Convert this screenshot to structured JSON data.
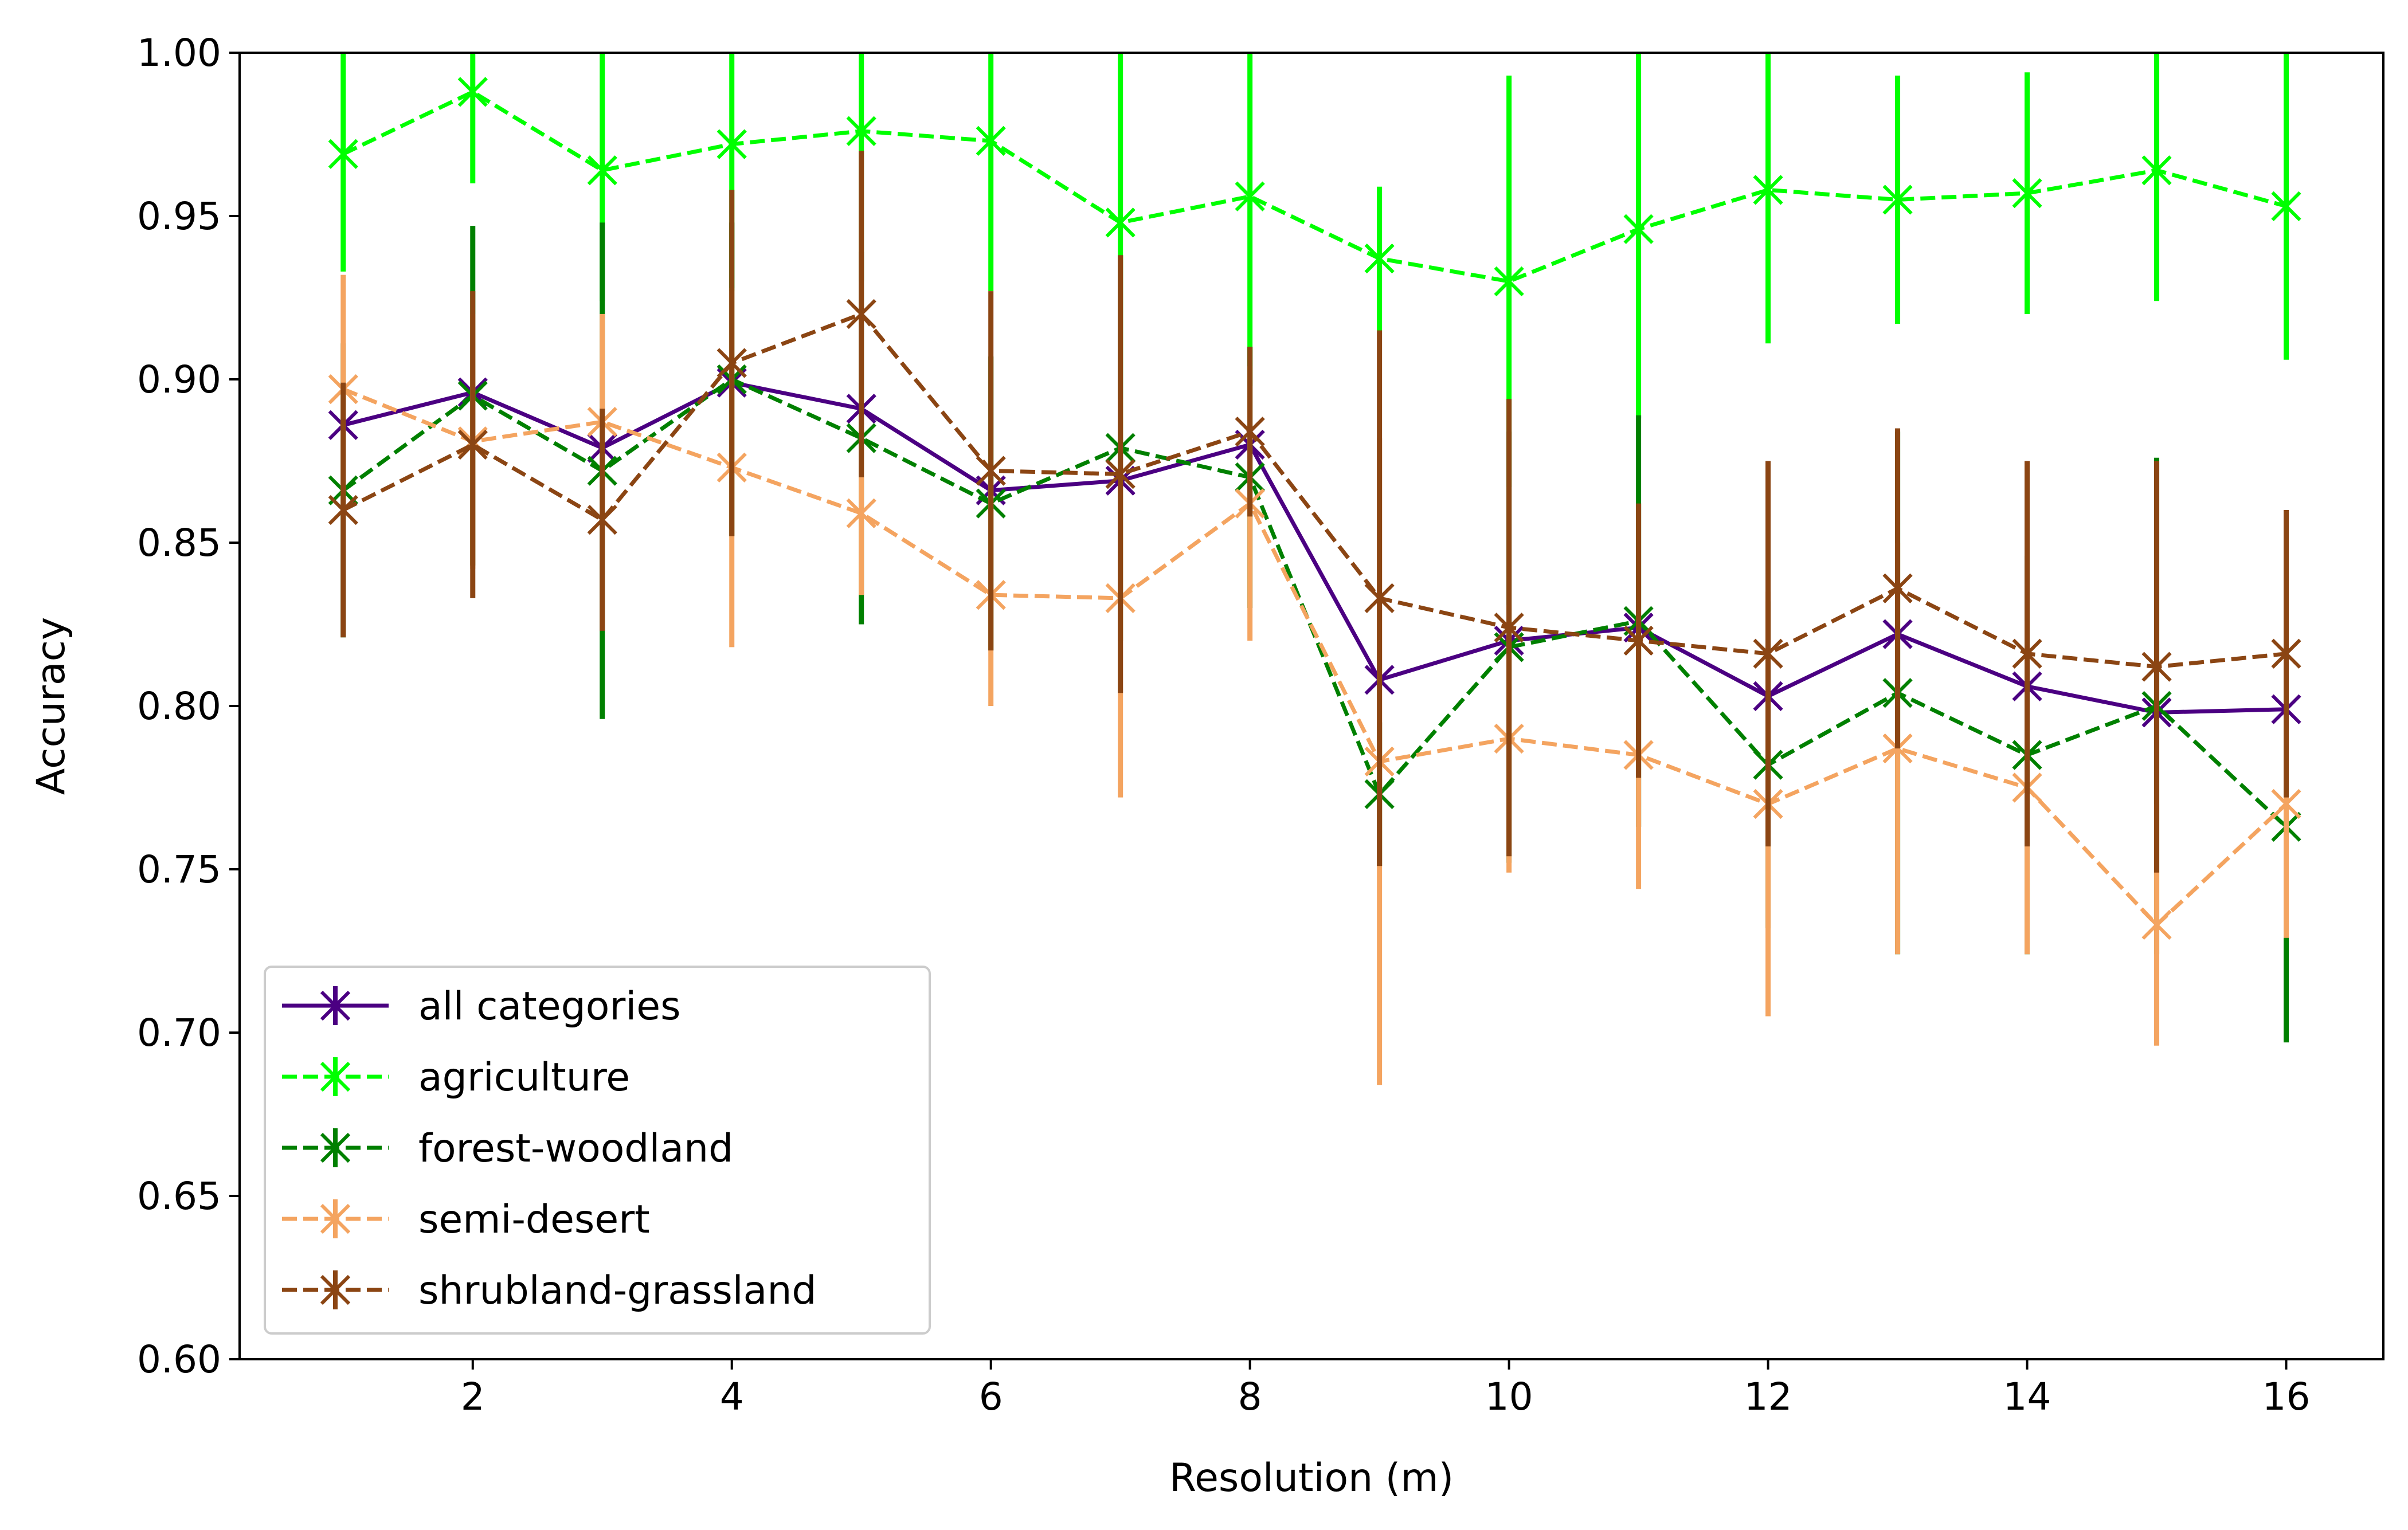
{
  "chart_data": {
    "type": "line",
    "title": "",
    "xlabel": "Resolution (m)",
    "ylabel": "Accuracy",
    "xlim": [
      0.2,
      16.75
    ],
    "ylim": [
      0.6,
      1.0
    ],
    "xticks": [
      2,
      4,
      6,
      8,
      10,
      12,
      14,
      16
    ],
    "yticks": [
      0.6,
      0.65,
      0.7,
      0.75,
      0.8,
      0.85,
      0.9,
      0.95,
      1.0
    ],
    "ytick_labels": [
      "0.60",
      "0.65",
      "0.70",
      "0.75",
      "0.80",
      "0.85",
      "0.90",
      "0.95",
      "1.00"
    ],
    "grid": false,
    "legend_position": "lower-left",
    "x": [
      1,
      2,
      3,
      4,
      5,
      6,
      7,
      8,
      9,
      10,
      11,
      12,
      13,
      14,
      15,
      16
    ],
    "series": [
      {
        "name": "all categories",
        "color": "#4b0082",
        "dashed": false,
        "values": [
          0.886,
          0.896,
          0.879,
          0.899,
          0.891,
          0.866,
          0.869,
          0.88,
          0.808,
          0.82,
          0.824,
          0.803,
          0.822,
          0.806,
          0.798,
          0.799
        ],
        "errors": [
          0.0,
          0.0,
          0.0,
          0.0,
          0.0,
          0.0,
          0.0,
          0.0,
          0.0,
          0.0,
          0.0,
          0.0,
          0.0,
          0.0,
          0.0,
          0.0
        ]
      },
      {
        "name": "agriculture",
        "color": "#00ff00",
        "dashed": true,
        "values": [
          0.969,
          0.988,
          0.964,
          0.972,
          0.976,
          0.973,
          0.948,
          0.956,
          0.937,
          0.93,
          0.946,
          0.958,
          0.955,
          0.957,
          0.964,
          0.953
        ],
        "errors": [
          0.036,
          0.028,
          0.04,
          0.045,
          0.046,
          0.046,
          0.068,
          0.058,
          0.022,
          0.063,
          0.058,
          0.047,
          0.038,
          0.037,
          0.04,
          0.047
        ]
      },
      {
        "name": "forest-woodland",
        "color": "#008000",
        "dashed": true,
        "values": [
          0.866,
          0.895,
          0.872,
          0.9,
          0.882,
          0.862,
          0.879,
          0.87,
          0.773,
          0.818,
          0.826,
          0.782,
          0.804,
          0.785,
          0.8,
          0.763
        ],
        "errors": [
          0.045,
          0.052,
          0.076,
          0.048,
          0.057,
          0.045,
          0.059,
          0.04,
          0.022,
          0.066,
          0.063,
          0.05,
          0.08,
          0.061,
          0.076,
          0.066
        ]
      },
      {
        "name": "semi-desert",
        "color": "#f4a460",
        "dashed": true,
        "values": [
          0.897,
          0.881,
          0.887,
          0.873,
          0.859,
          0.834,
          0.833,
          0.862,
          0.783,
          0.79,
          0.785,
          0.77,
          0.787,
          0.775,
          0.733,
          0.77
        ],
        "errors": [
          0.035,
          0.039,
          0.033,
          0.055,
          0.025,
          0.034,
          0.061,
          0.042,
          0.099,
          0.041,
          0.041,
          0.065,
          0.063,
          0.051,
          0.037,
          0.041
        ]
      },
      {
        "name": "shrubland-grassland",
        "color": "#8b4513",
        "dashed": true,
        "values": [
          0.86,
          0.88,
          0.857,
          0.905,
          0.92,
          0.872,
          0.871,
          0.884,
          0.833,
          0.824,
          0.82,
          0.816,
          0.836,
          0.816,
          0.812,
          0.816
        ],
        "errors": [
          0.039,
          0.047,
          0.034,
          0.053,
          0.05,
          0.055,
          0.067,
          0.026,
          0.082,
          0.07,
          0.042,
          0.059,
          0.049,
          0.059,
          0.063,
          0.044
        ]
      }
    ]
  }
}
